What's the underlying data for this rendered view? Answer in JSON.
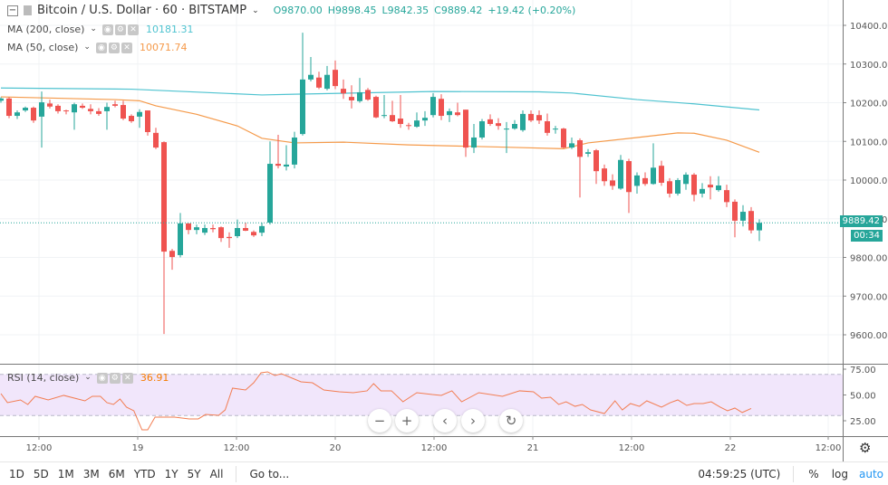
{
  "header": {
    "symbol": "Bitcoin / U.S. Dollar · 60 · BITSTAMP",
    "open": "O9870.00",
    "high": "H9898.45",
    "low": "L9842.35",
    "close": "C9889.42",
    "change": "+19.42 (+0.20%)"
  },
  "indicators": [
    {
      "label": "MA (200, close)",
      "value": "10181.31",
      "color": "#4fc3d0"
    },
    {
      "label": "MA (50, close)",
      "value": "10071.74",
      "color": "#f59a4a"
    },
    {
      "label": "RSI (14, close)",
      "value": "36.91",
      "color": "#f57c00"
    }
  ],
  "colors": {
    "up": "#26a69a",
    "down": "#ef5350",
    "rsi_band": "#f1e6fb",
    "accent": "#2196f3"
  },
  "price_axis": {
    "ticks": [
      "10400.00",
      "10300.00",
      "10200.00",
      "10100.00",
      "10000.00",
      "9900.00",
      "9800.00",
      "9700.00",
      "9600.00"
    ],
    "range": [
      9550,
      10460
    ],
    "last_price": "9889.42",
    "countdown": "00:34"
  },
  "rsi_axis": {
    "ticks": [
      "75.00",
      "50.00",
      "25.00"
    ],
    "band": [
      30,
      70
    ]
  },
  "time_axis": [
    "12:00",
    "19",
    "12:00",
    "20",
    "12:00",
    "21",
    "12:00",
    "22",
    "12:00"
  ],
  "chart_data": {
    "type": "candlestick",
    "interval": "60",
    "candles": [
      [
        10205,
        10214,
        10200,
        10211
      ],
      [
        10211,
        10214,
        10160,
        10166
      ],
      [
        10166,
        10180,
        10158,
        10175
      ],
      [
        10180,
        10190,
        10176,
        10187
      ],
      [
        10187,
        10190,
        10148,
        10154
      ],
      [
        10164,
        10229,
        10084,
        10201
      ],
      [
        10198,
        10208,
        10185,
        10190
      ],
      [
        10192,
        10196,
        10172,
        10178
      ],
      [
        10180,
        10182,
        10170,
        10178
      ],
      [
        10175,
        10200,
        10130,
        10196
      ],
      [
        10192,
        10198,
        10184,
        10187
      ],
      [
        10184,
        10196,
        10170,
        10178
      ],
      [
        10178,
        10186,
        10166,
        10171
      ],
      [
        10178,
        10200,
        10130,
        10189
      ],
      [
        10196,
        10205,
        10188,
        10192
      ],
      [
        10194,
        10205,
        10155,
        10159
      ],
      [
        10166,
        10170,
        10148,
        10152
      ],
      [
        10164,
        10183,
        10135,
        10176
      ],
      [
        10180,
        10180,
        10115,
        10124
      ],
      [
        10122,
        10135,
        10080,
        10084
      ],
      [
        10098,
        10100,
        9602,
        9815
      ],
      [
        9817,
        9822,
        9768,
        9801
      ],
      [
        9806,
        9915,
        9800,
        9888
      ],
      [
        9888,
        9888,
        9860,
        9871
      ],
      [
        9871,
        9885,
        9860,
        9878
      ],
      [
        9864,
        9885,
        9858,
        9876
      ],
      [
        9876,
        9885,
        9865,
        9873
      ],
      [
        9878,
        9880,
        9840,
        9850
      ],
      [
        9853,
        9865,
        9825,
        9850
      ],
      [
        9855,
        9898,
        9850,
        9876
      ],
      [
        9876,
        9890,
        9868,
        9869
      ],
      [
        9866,
        9870,
        9853,
        9857
      ],
      [
        9864,
        9890,
        9855,
        9881
      ],
      [
        9890,
        10100,
        9885,
        10042
      ],
      [
        10042,
        10117,
        10030,
        10037
      ],
      [
        10035,
        10090,
        10025,
        10040
      ],
      [
        10040,
        10125,
        10030,
        10110
      ],
      [
        10119,
        10381,
        10115,
        10260
      ],
      [
        10260,
        10318,
        10255,
        10272
      ],
      [
        10265,
        10280,
        10235,
        10239
      ],
      [
        10236,
        10295,
        10232,
        10272
      ],
      [
        10285,
        10309,
        10235,
        10243
      ],
      [
        10236,
        10260,
        10210,
        10224
      ],
      [
        10215,
        10245,
        10185,
        10206
      ],
      [
        10204,
        10264,
        10200,
        10227
      ],
      [
        10233,
        10238,
        10205,
        10208
      ],
      [
        10215,
        10218,
        10160,
        10162
      ],
      [
        10168,
        10220,
        10160,
        10168
      ],
      [
        10168,
        10205,
        10150,
        10152
      ],
      [
        10159,
        10220,
        10135,
        10145
      ],
      [
        10142,
        10148,
        10130,
        10140
      ],
      [
        10138,
        10175,
        10135,
        10154
      ],
      [
        10154,
        10178,
        10140,
        10161
      ],
      [
        10168,
        10225,
        10162,
        10215
      ],
      [
        10210,
        10222,
        10155,
        10166
      ],
      [
        10168,
        10185,
        10150,
        10178
      ],
      [
        10175,
        10200,
        10165,
        10168
      ],
      [
        10182,
        10182,
        10060,
        10084
      ],
      [
        10084,
        10145,
        10070,
        10110
      ],
      [
        10110,
        10158,
        10105,
        10152
      ],
      [
        10157,
        10170,
        10140,
        10145
      ],
      [
        10147,
        10160,
        10130,
        10140
      ],
      [
        10133,
        10150,
        10070,
        10133
      ],
      [
        10133,
        10155,
        10130,
        10145
      ],
      [
        10129,
        10180,
        10125,
        10171
      ],
      [
        10171,
        10180,
        10150,
        10154
      ],
      [
        10168,
        10180,
        10145,
        10154
      ],
      [
        10152,
        10172,
        10115,
        10122
      ],
      [
        10133,
        10140,
        10120,
        10133
      ],
      [
        10133,
        10135,
        10082,
        10084
      ],
      [
        10084,
        10110,
        10080,
        10095
      ],
      [
        10103,
        10108,
        9955,
        10060
      ],
      [
        10068,
        10080,
        10060,
        10072
      ],
      [
        10077,
        10080,
        9990,
        10023
      ],
      [
        10030,
        10040,
        9985,
        9997
      ],
      [
        9999,
        10015,
        9975,
        9985
      ],
      [
        9978,
        10065,
        9975,
        10052
      ],
      [
        10049,
        10055,
        9915,
        9969
      ],
      [
        9985,
        10020,
        9965,
        10012
      ],
      [
        10005,
        10020,
        9985,
        9990
      ],
      [
        9990,
        10095,
        9988,
        10032
      ],
      [
        10037,
        10050,
        9985,
        9993
      ],
      [
        9997,
        10005,
        9955,
        9965
      ],
      [
        9965,
        10005,
        9960,
        10000
      ],
      [
        9990,
        10020,
        9975,
        10014
      ],
      [
        10014,
        10018,
        9945,
        9962
      ],
      [
        9965,
        9992,
        9955,
        9977
      ],
      [
        9988,
        10010,
        9950,
        9981
      ],
      [
        9974,
        10010,
        9970,
        9986
      ],
      [
        9974,
        9988,
        9930,
        9943
      ],
      [
        9944,
        9950,
        9852,
        9895
      ],
      [
        9895,
        9935,
        9880,
        9918
      ],
      [
        9920,
        9930,
        9862,
        9870
      ],
      [
        9870,
        9898.45,
        9842.35,
        9889.42
      ]
    ],
    "ma200": [
      [
        0,
        10238
      ],
      [
        16,
        10235
      ],
      [
        32,
        10220
      ],
      [
        36,
        10222
      ],
      [
        53,
        10229
      ],
      [
        66,
        10228
      ],
      [
        70,
        10225
      ],
      [
        78,
        10208
      ],
      [
        85,
        10197
      ],
      [
        93,
        10181.31
      ]
    ],
    "ma50": [
      [
        0,
        10215
      ],
      [
        14,
        10208
      ],
      [
        17,
        10205
      ],
      [
        19,
        10192
      ],
      [
        24,
        10170
      ],
      [
        29,
        10140
      ],
      [
        32,
        10108
      ],
      [
        36,
        10096
      ],
      [
        42,
        10098
      ],
      [
        50,
        10091
      ],
      [
        62,
        10085
      ],
      [
        69,
        10081
      ],
      [
        72,
        10096
      ],
      [
        78,
        10110
      ],
      [
        83,
        10122
      ],
      [
        85,
        10121
      ],
      [
        89,
        10103
      ],
      [
        93,
        10071.74
      ]
    ],
    "rsi": [
      [
        0,
        51.3
      ],
      [
        0.8,
        42.6
      ],
      [
        2.4,
        45.2
      ],
      [
        3.3,
        40.8
      ],
      [
        4.2,
        48.7
      ],
      [
        5.8,
        45.2
      ],
      [
        7.7,
        49.6
      ],
      [
        10.3,
        44.3
      ],
      [
        11.2,
        48.7
      ],
      [
        12.2,
        48.7
      ],
      [
        13,
        42.6
      ],
      [
        13.8,
        40.8
      ],
      [
        14.6,
        46.1
      ],
      [
        15.4,
        38.2
      ],
      [
        16.3,
        34.7
      ],
      [
        17.3,
        16.2
      ],
      [
        18,
        16.2
      ],
      [
        18.9,
        28.5
      ],
      [
        21.3,
        28.5
      ],
      [
        23.1,
        26.8
      ],
      [
        24.2,
        26.8
      ],
      [
        25.1,
        31.1
      ],
      [
        26.7,
        30.3
      ],
      [
        27.5,
        35.5
      ],
      [
        28.4,
        56.6
      ],
      [
        30,
        54.8
      ],
      [
        31,
        61.8
      ],
      [
        31.9,
        71.5
      ],
      [
        32.7,
        72.4
      ],
      [
        33.6,
        68.9
      ],
      [
        34.4,
        70.6
      ],
      [
        36.8,
        62.7
      ],
      [
        38.2,
        61.8
      ],
      [
        39.6,
        54.8
      ],
      [
        41.5,
        53.1
      ],
      [
        43.2,
        52.2
      ],
      [
        44.9,
        54
      ],
      [
        45.7,
        61
      ],
      [
        46.6,
        54
      ],
      [
        47.9,
        54
      ],
      [
        49.3,
        43.4
      ],
      [
        51,
        52.2
      ],
      [
        52.9,
        50.4
      ],
      [
        54,
        49.6
      ],
      [
        55.3,
        54
      ],
      [
        56.5,
        43.4
      ],
      [
        58.6,
        52.2
      ],
      [
        61.5,
        48.7
      ],
      [
        63.6,
        54
      ],
      [
        65.3,
        53.1
      ],
      [
        66.3,
        46.9
      ],
      [
        67.4,
        47.8
      ],
      [
        68.4,
        40.8
      ],
      [
        69.3,
        43.4
      ],
      [
        70.4,
        39
      ],
      [
        71.3,
        40.8
      ],
      [
        72.3,
        35.5
      ],
      [
        74,
        32
      ],
      [
        75.3,
        44.3
      ],
      [
        76.2,
        35.5
      ],
      [
        77.2,
        41.7
      ],
      [
        78.3,
        39
      ],
      [
        79.2,
        44.3
      ],
      [
        81,
        38.2
      ],
      [
        82.1,
        42.6
      ],
      [
        83,
        45.2
      ],
      [
        84.1,
        39.9
      ],
      [
        85,
        41.7
      ],
      [
        86.1,
        41.7
      ],
      [
        87.1,
        43.4
      ],
      [
        88.2,
        38.2
      ],
      [
        89.1,
        34.7
      ],
      [
        90,
        37.3
      ],
      [
        90.9,
        33
      ],
      [
        92,
        36.91
      ]
    ]
  },
  "nav": {
    "zoom_out": "−",
    "zoom_in": "+",
    "scroll_left": "‹",
    "scroll_right": "›",
    "reset": "↻"
  },
  "bottom": {
    "ranges": [
      "1D",
      "5D",
      "1M",
      "3M",
      "6M",
      "YTD",
      "1Y",
      "5Y",
      "All"
    ],
    "goto": "Go to...",
    "clock": "04:59:25 (UTC)",
    "percent": "%",
    "log": "log",
    "auto": "auto"
  }
}
